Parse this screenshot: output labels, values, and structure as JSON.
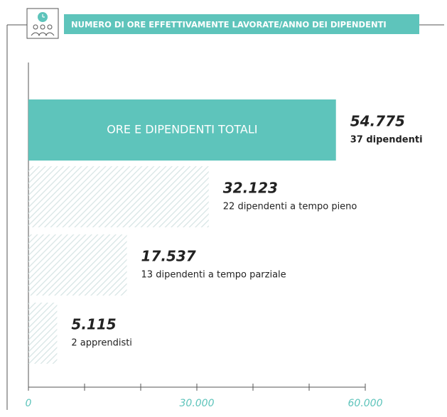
{
  "chart_data": {
    "type": "barh",
    "title": "NUMERO DI ORE EFFETTIVAMENTE LAVORATE/ANNO DEI DIPENDENTI",
    "categories": [
      "ORE E DIPENDENTI TOTALI",
      null,
      null,
      null
    ],
    "values": [
      54775,
      32123,
      17537,
      5115
    ],
    "value_labels": [
      "54.775",
      "32.123",
      "17.537",
      "5.115"
    ],
    "sublabels": [
      "37 dipendenti",
      "22 dipendenti a tempo pieno",
      "13 dipendenti a tempo parziale",
      "2 apprendisti"
    ],
    "colors": [
      "#5ec4bb",
      "#d6e4e4",
      "#d6e4e4",
      "#d6e4e4"
    ],
    "xlim": [
      0,
      60000
    ],
    "xticks": [
      0,
      {
        "value": 30000,
        "label": "30.000"
      },
      {
        "value": 60000,
        "label": "60.000"
      }
    ],
    "minor_xticks": [
      10000,
      20000,
      40000,
      50000
    ]
  }
}
